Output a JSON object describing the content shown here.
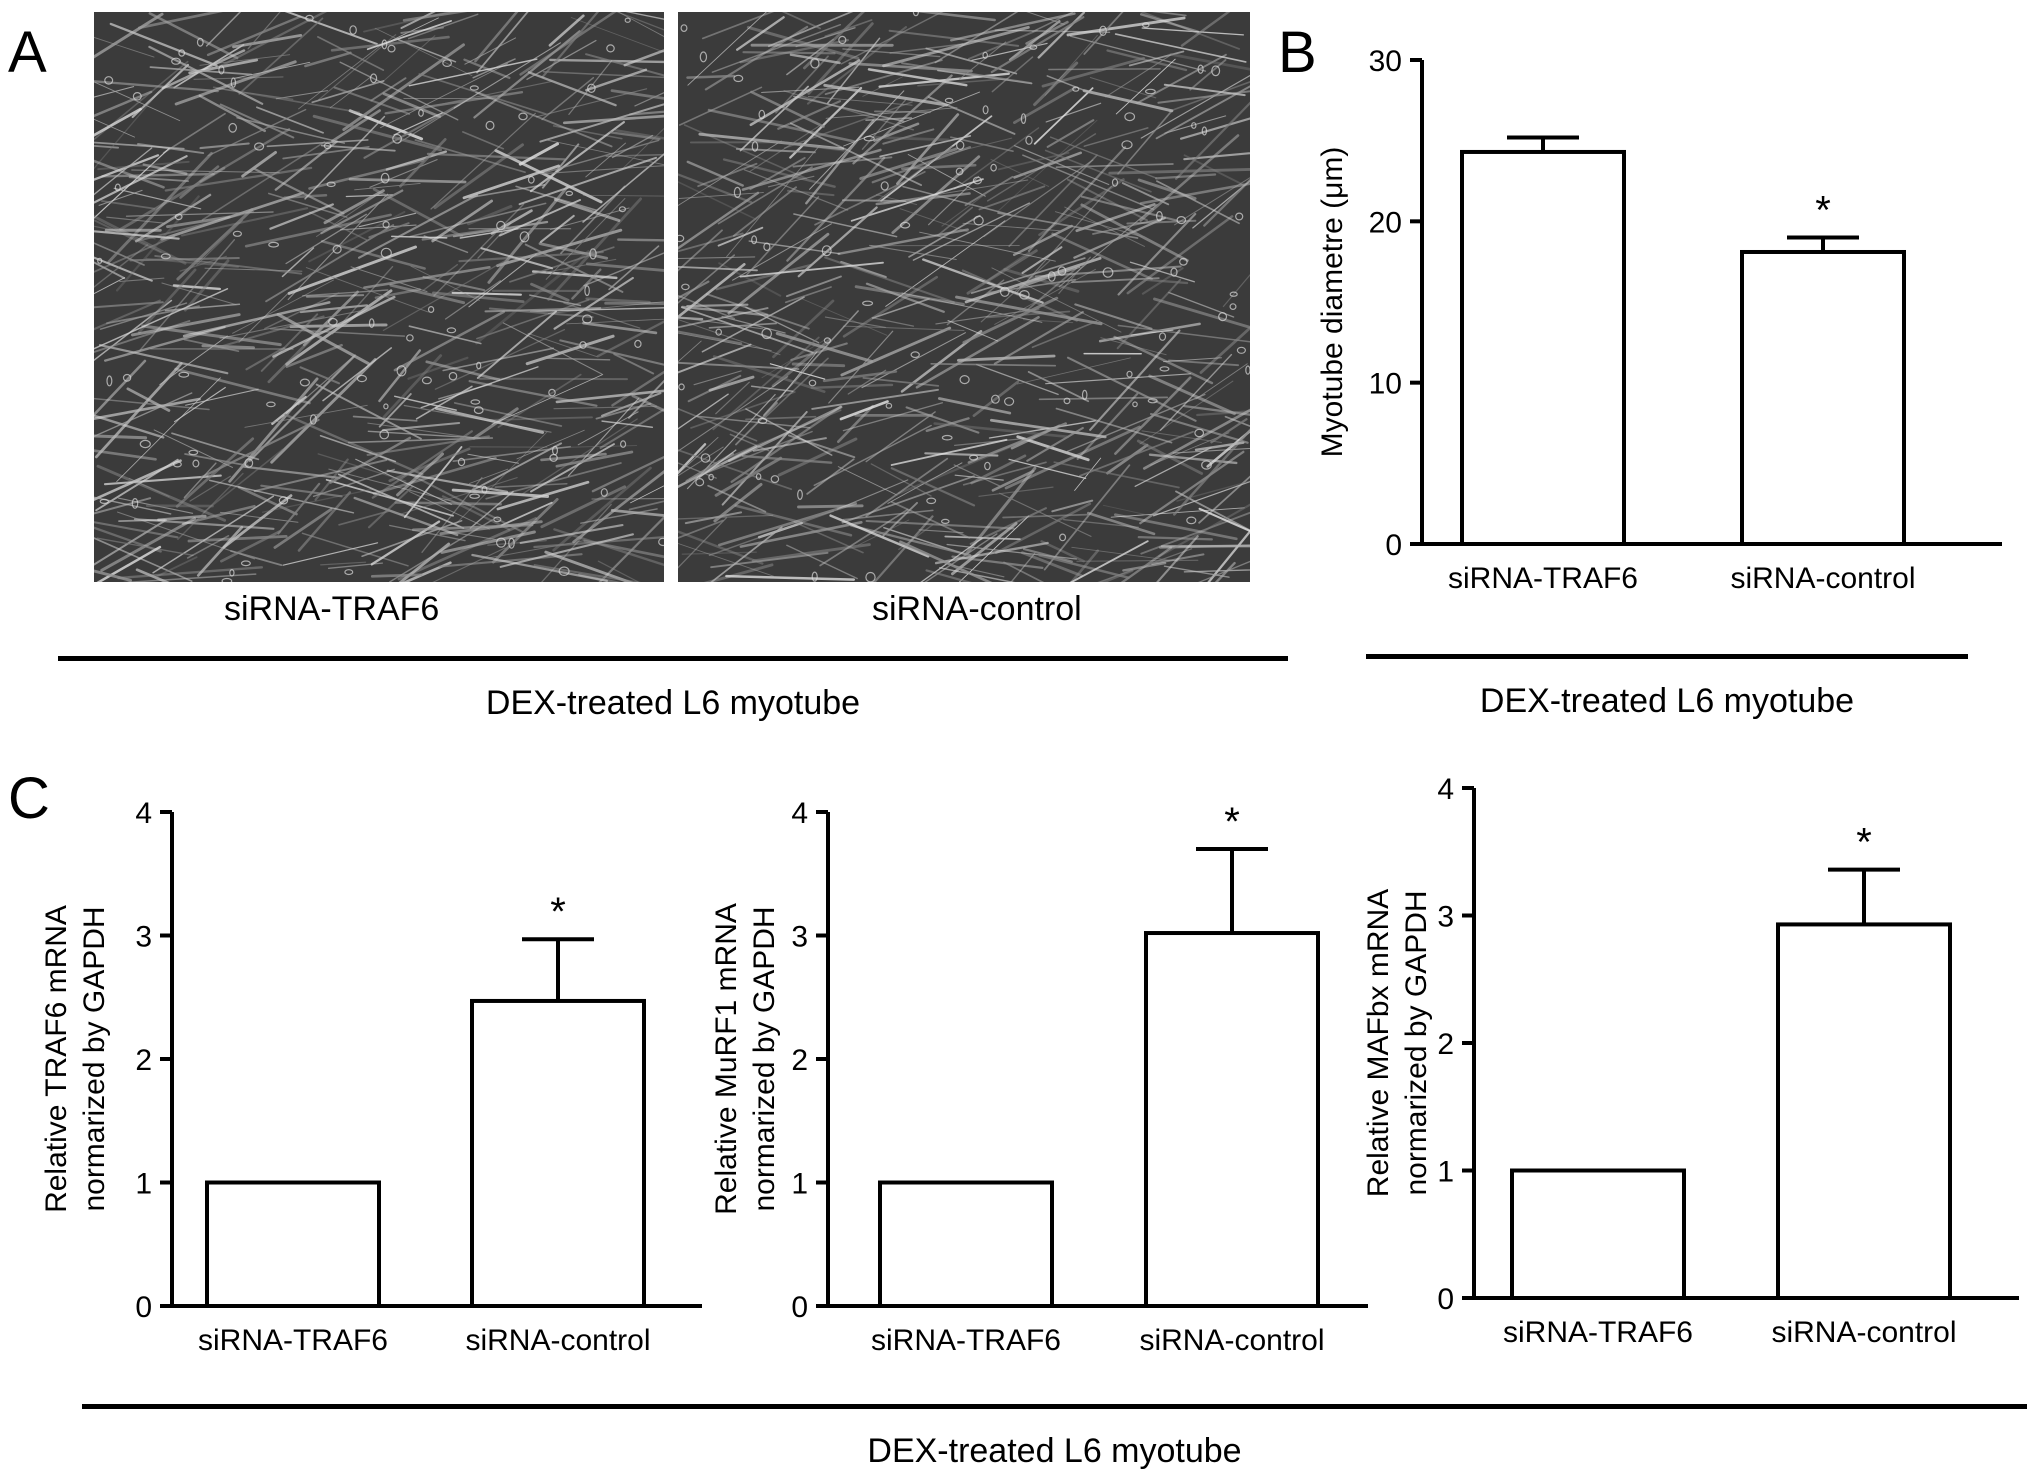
{
  "panels": {
    "A": {
      "letter": "A",
      "image_labels": [
        "siRNA-TRAF6",
        "siRNA-control"
      ],
      "group_label": "DEX-treated L6 myotube"
    },
    "B": {
      "letter": "B",
      "group_label": "DEX-treated L6 myotube"
    },
    "C": {
      "letter": "C",
      "group_label": "DEX-treated L6 myotube"
    }
  },
  "chart_data": [
    {
      "id": "chartB",
      "type": "bar",
      "categories": [
        "siRNA-TRAF6",
        "siRNA-control"
      ],
      "values": [
        24.3,
        18.1
      ],
      "errors": [
        0.9,
        0.9
      ],
      "significance": [
        "",
        "*"
      ],
      "ylabel": [
        "Myotube diametre (μm)"
      ],
      "ylim": [
        0,
        30
      ],
      "yticks": [
        0,
        10,
        20,
        30
      ],
      "grid": false
    },
    {
      "id": "chartC1",
      "type": "bar",
      "categories": [
        "siRNA-TRAF6",
        "siRNA-control"
      ],
      "values": [
        1.0,
        2.47
      ],
      "errors": [
        0,
        0.5
      ],
      "significance": [
        "",
        "*"
      ],
      "ylabel": [
        "Relative TRAF6 mRNA",
        "normarized by GAPDH"
      ],
      "ylim": [
        0,
        4
      ],
      "yticks": [
        0,
        1,
        2,
        3,
        4
      ],
      "grid": false
    },
    {
      "id": "chartC2",
      "type": "bar",
      "categories": [
        "siRNA-TRAF6",
        "siRNA-control"
      ],
      "values": [
        1.0,
        3.02
      ],
      "errors": [
        0,
        0.68
      ],
      "significance": [
        "",
        "*"
      ],
      "ylabel": [
        "Relative MuRF1 mRNA",
        "normarized by GAPDH"
      ],
      "ylim": [
        0,
        4
      ],
      "yticks": [
        0,
        1,
        2,
        3,
        4
      ],
      "grid": false
    },
    {
      "id": "chartC3",
      "type": "bar",
      "categories": [
        "siRNA-TRAF6",
        "siRNA-control"
      ],
      "values": [
        1.0,
        2.93
      ],
      "errors": [
        0,
        0.43
      ],
      "significance": [
        "",
        "*"
      ],
      "ylabel": [
        "Relative MAFbx mRNA",
        "normarized by GAPDH"
      ],
      "ylim": [
        0,
        4
      ],
      "yticks": [
        0,
        1,
        2,
        3,
        4
      ],
      "grid": false
    }
  ]
}
